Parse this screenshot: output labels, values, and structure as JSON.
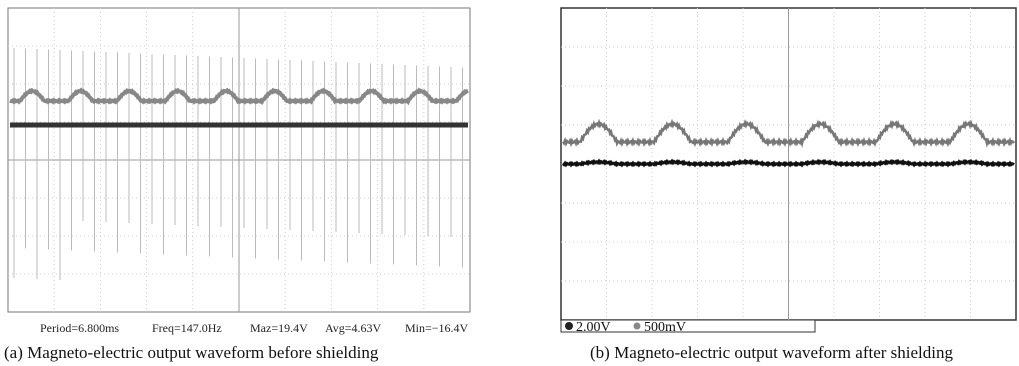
{
  "panels": [
    {
      "measurements": [
        "Period=6.800ms",
        "Freq=147.0Hz",
        "Maz=19.4V",
        "Avg=4.63V",
        "Min=−16.4V"
      ],
      "caption": "(a) Magneto-electric output waveform before shielding"
    },
    {
      "scales": [
        "2.00V",
        "500mV"
      ],
      "caption": "(b) Magneto-electric output waveform after shielding"
    }
  ]
}
